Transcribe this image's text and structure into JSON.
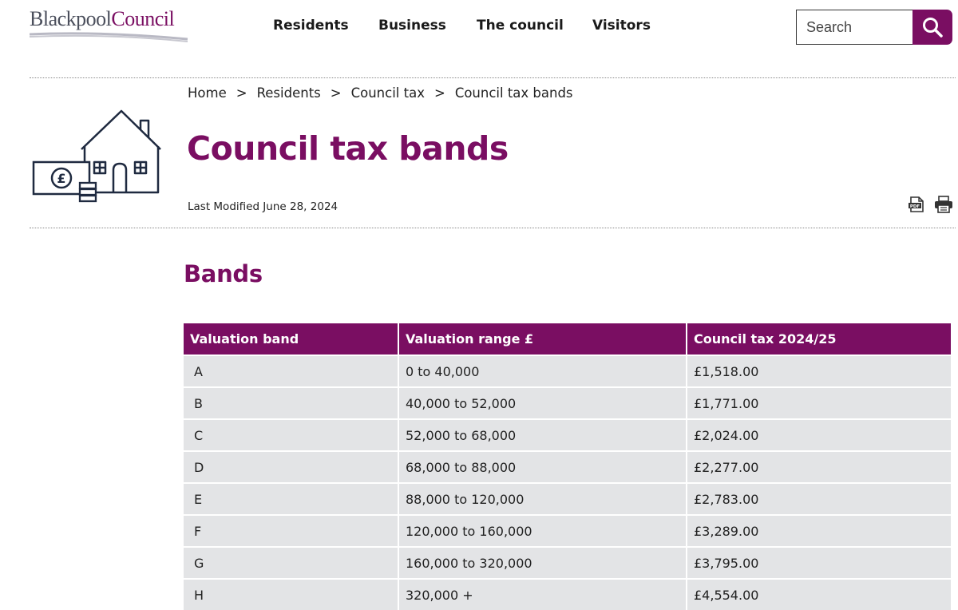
{
  "header": {
    "logo_part1": "Blackpool",
    "logo_part2": "Council",
    "nav": [
      "Residents",
      "Business",
      "The council",
      "Visitors"
    ],
    "search_placeholder": "Search"
  },
  "breadcrumb": {
    "items": [
      "Home",
      "Residents",
      "Council tax",
      "Council tax bands"
    ],
    "separator": ">"
  },
  "page": {
    "title": "Council tax bands",
    "last_modified": "Last Modified June 28, 2024",
    "section_title": "Bands"
  },
  "table": {
    "headers": [
      "Valuation band",
      "Valuation range £",
      "Council tax 2024/25"
    ],
    "rows": [
      [
        "A",
        "0 to 40,000",
        "£1,518.00"
      ],
      [
        "B",
        "40,000 to 52,000",
        "£1,771.00"
      ],
      [
        "C",
        "52,000 to 68,000",
        "£2,024.00"
      ],
      [
        "D",
        "68,000 to 88,000",
        "£2,277.00"
      ],
      [
        "E",
        "88,000 to 120,000",
        "£2,783.00"
      ],
      [
        "F",
        "120,000 to 160,000",
        "£3,289.00"
      ],
      [
        "G",
        "160,000 to 320,000",
        "£3,795.00"
      ],
      [
        "H",
        "320,000 +",
        "£4,554.00"
      ]
    ]
  },
  "icons": {
    "house": "house-with-pound-note-icon",
    "search": "search-icon",
    "pdf": "pdf-icon",
    "print": "print-icon"
  },
  "colors": {
    "brand": "#7a0e62",
    "row_background": "#e3e4e6"
  }
}
